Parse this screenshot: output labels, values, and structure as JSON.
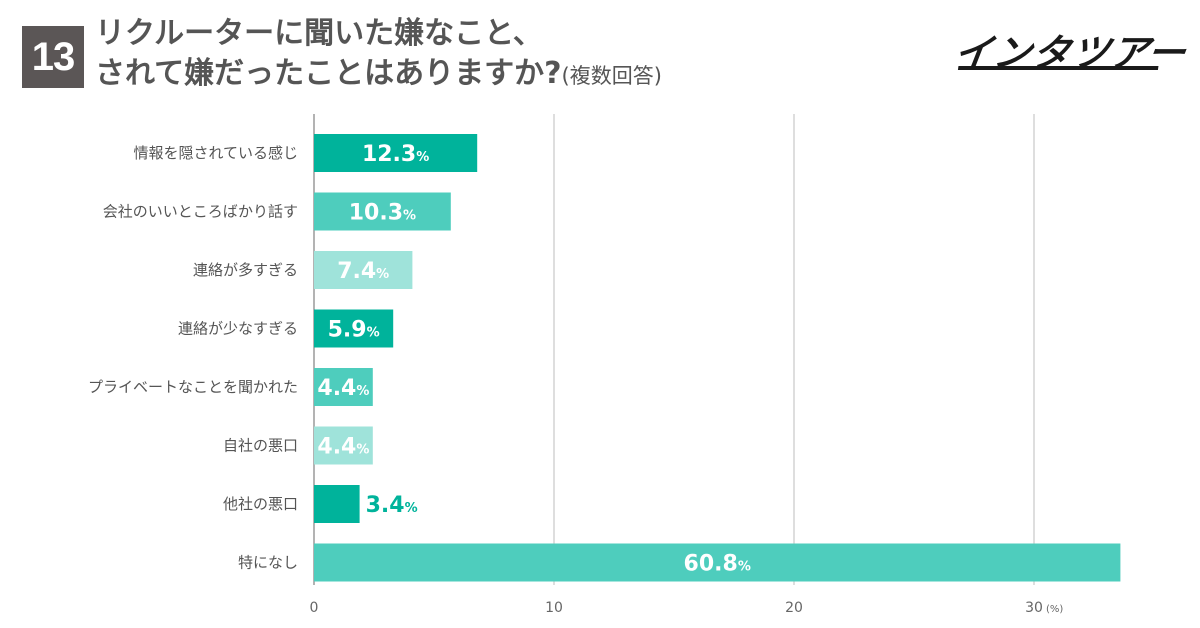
{
  "badge": "13",
  "title": {
    "line1": "リクルーターに聞いた嫌なこと、",
    "line2": "されて嫌だったことはありますか?",
    "suffix": "(複数回答)"
  },
  "logo": {
    "text": "インタツアー"
  },
  "colors": {
    "dark": "#00b39b",
    "medium": "#4ecdbd",
    "light": "#9fe3da",
    "gridline": "#d4d4d4",
    "axis": "#9a9a9a"
  },
  "chart_data": {
    "type": "bar",
    "orientation": "horizontal",
    "categories": [
      "情報を隠されている感じ",
      "会社のいいところばかり話す",
      "連絡が多すぎる",
      "連絡が少なすぎる",
      "プライベートなことを聞かれた",
      "自社の悪口",
      "他社の悪口",
      "特になし"
    ],
    "values": [
      12.3,
      10.3,
      7.4,
      5.9,
      4.4,
      4.4,
      3.4,
      60.8
    ],
    "value_labels": [
      "12.3",
      "10.3",
      "7.4",
      "5.9",
      "4.4",
      "4.4",
      "3.4",
      "60.8"
    ],
    "value_unit": "%",
    "bar_colors": [
      "dark",
      "medium",
      "light",
      "dark",
      "medium",
      "light",
      "dark",
      "medium"
    ],
    "bar_display_length": [
      6.8,
      5.7,
      4.1,
      3.3,
      2.45,
      2.45,
      1.9,
      33.6
    ],
    "xticks": [
      0,
      10,
      20,
      30
    ],
    "xtick_labels": [
      "0",
      "10",
      "20",
      "30"
    ],
    "x_unit": "(%)",
    "xlim": [
      0,
      36
    ],
    "grid": true
  }
}
